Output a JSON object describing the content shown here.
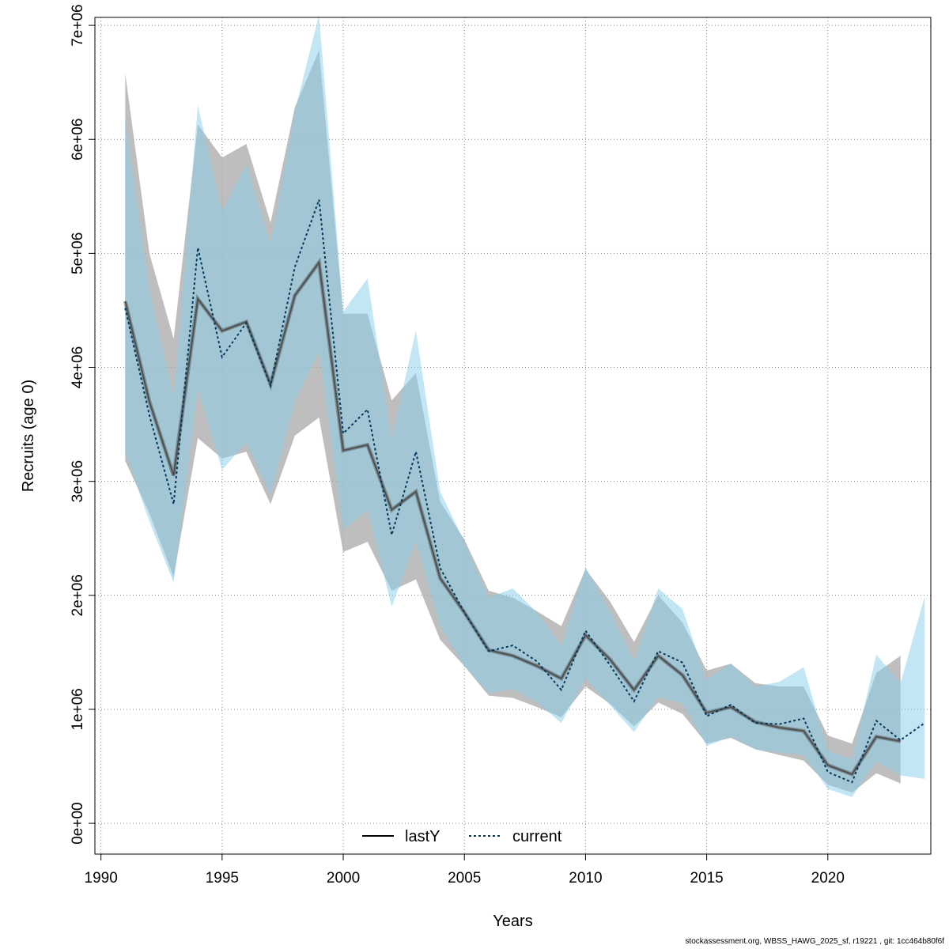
{
  "chart_data": {
    "type": "line",
    "xlabel": "Years",
    "ylabel": "Recruits (age 0)",
    "xlim": [
      1990,
      2024
    ],
    "ylim": [
      0,
      7000000
    ],
    "x_ticks": [
      1990,
      1995,
      2000,
      2005,
      2010,
      2015,
      2020
    ],
    "y_ticks": [
      0,
      1000000,
      2000000,
      3000000,
      4000000,
      5000000,
      6000000,
      7000000
    ],
    "y_tick_labels": [
      "0e+00",
      "1e+06",
      "2e+06",
      "3e+06",
      "4e+06",
      "5e+06",
      "6e+06",
      "7e+06"
    ],
    "grid": true,
    "legend_position": "bottom",
    "colors": {
      "lastY_band": "#a8a8a8",
      "current_band": "#87ceeb",
      "lastY_line": "#000000",
      "current_line": "#00375c"
    },
    "series": [
      {
        "name": "lastY",
        "style": "solid",
        "x": [
          1991,
          1992,
          1993,
          1994,
          1995,
          1996,
          1997,
          1998,
          1999,
          2000,
          2001,
          2002,
          2003,
          2004,
          2005,
          2006,
          2007,
          2008,
          2009,
          2010,
          2011,
          2012,
          2013,
          2014,
          2015,
          2016,
          2017,
          2018,
          2019,
          2020,
          2021,
          2022,
          2023
        ],
        "y": [
          4580000,
          3700000,
          3050000,
          4600000,
          4320000,
          4400000,
          3850000,
          4630000,
          4920000,
          3270000,
          3320000,
          2750000,
          2910000,
          2150000,
          1850000,
          1520000,
          1470000,
          1380000,
          1270000,
          1650000,
          1440000,
          1170000,
          1470000,
          1300000,
          970000,
          1020000,
          890000,
          840000,
          810000,
          510000,
          430000,
          760000,
          720000
        ],
        "upper": [
          6580000,
          5000000,
          4250000,
          6130000,
          5840000,
          5960000,
          5270000,
          6280000,
          6780000,
          4470000,
          4470000,
          3710000,
          3950000,
          2820000,
          2490000,
          2040000,
          1980000,
          1860000,
          1730000,
          2230000,
          1950000,
          1590000,
          2000000,
          1760000,
          1340000,
          1400000,
          1230000,
          1200000,
          1200000,
          770000,
          700000,
          1320000,
          1470000
        ],
        "lower": [
          3180000,
          2720000,
          2160000,
          3380000,
          3200000,
          3260000,
          2800000,
          3400000,
          3560000,
          2380000,
          2470000,
          2040000,
          2140000,
          1610000,
          1380000,
          1120000,
          1100000,
          1020000,
          930000,
          1200000,
          1050000,
          850000,
          1060000,
          960000,
          700000,
          750000,
          650000,
          600000,
          550000,
          340000,
          270000,
          440000,
          350000
        ]
      },
      {
        "name": "current",
        "style": "dashed",
        "x": [
          1991,
          1992,
          1993,
          1994,
          1995,
          1996,
          1997,
          1998,
          1999,
          2000,
          2001,
          2002,
          2003,
          2004,
          2005,
          2006,
          2007,
          2008,
          2009,
          2010,
          2011,
          2012,
          2013,
          2014,
          2015,
          2016,
          2017,
          2018,
          2019,
          2020,
          2021,
          2022,
          2023,
          2024
        ],
        "y": [
          4520000,
          3580000,
          2800000,
          5050000,
          4090000,
          4390000,
          3840000,
          4880000,
          5470000,
          3420000,
          3630000,
          2530000,
          3260000,
          2240000,
          1850000,
          1510000,
          1560000,
          1420000,
          1170000,
          1690000,
          1390000,
          1070000,
          1510000,
          1410000,
          940000,
          1040000,
          880000,
          870000,
          920000,
          450000,
          360000,
          900000,
          730000,
          880000
        ],
        "upper": [
          6170000,
          4690000,
          3740000,
          6300000,
          5370000,
          5780000,
          5080000,
          6250000,
          7090000,
          4490000,
          4780000,
          3380000,
          4320000,
          2910000,
          2470000,
          1980000,
          2060000,
          1850000,
          1560000,
          2250000,
          1860000,
          1430000,
          2060000,
          1880000,
          1260000,
          1400000,
          1200000,
          1240000,
          1370000,
          640000,
          560000,
          1480000,
          1230000,
          1990000
        ],
        "lower": [
          3250000,
          2650000,
          2110000,
          3810000,
          3100000,
          3340000,
          2880000,
          3700000,
          4140000,
          2570000,
          2750000,
          1900000,
          2470000,
          1730000,
          1380000,
          1140000,
          1180000,
          1060000,
          880000,
          1270000,
          1040000,
          800000,
          1110000,
          1050000,
          680000,
          760000,
          650000,
          620000,
          600000,
          300000,
          230000,
          540000,
          420000,
          390000
        ]
      }
    ]
  },
  "footer": "stockassessment.org, WBSS_HAWG_2025_sf, r19221 , git: 1cc464b80f6f"
}
